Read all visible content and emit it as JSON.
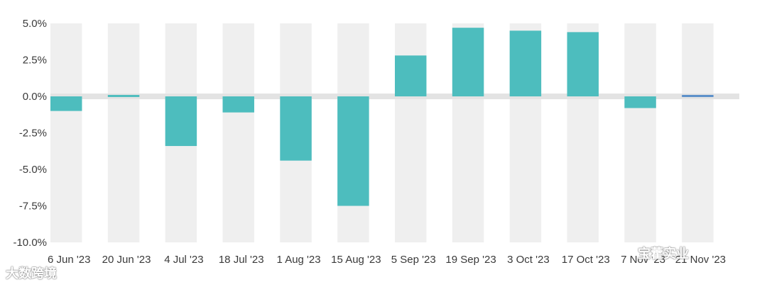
{
  "chart_data": {
    "type": "bar",
    "title": "",
    "xlabel": "",
    "ylabel": "",
    "ylim": [
      -10.0,
      5.0
    ],
    "y_ticks": [
      "5.0%",
      "2.5%",
      "0.0%",
      "-2.5%",
      "-5.0%",
      "-7.5%",
      "-10.0%"
    ],
    "y_tick_values": [
      5.0,
      2.5,
      0.0,
      -2.5,
      -5.0,
      -7.5,
      -10.0
    ],
    "categories": [
      "6 Jun '23",
      "20 Jun '23",
      "4 Jul '23",
      "18 Jul '23",
      "1 Aug '23",
      "15 Aug '23",
      "5 Sep '23",
      "19 Sep '23",
      "3 Oct '23",
      "17 Oct '23",
      "7 Nov '23",
      "21 Nov '23"
    ],
    "values": [
      -1.0,
      0.1,
      -3.4,
      -1.1,
      -4.4,
      -7.5,
      2.8,
      4.7,
      4.5,
      4.4,
      -0.8,
      0.1
    ],
    "grid": "alternating vertical bands",
    "colors": {
      "bar": "#4dbdbe",
      "last_bar": "#5b8fc9",
      "band": "#efefef",
      "zero_band": "#e3e3e3"
    }
  },
  "watermarks": {
    "left": "大数跨境",
    "right": "宝藿实业"
  }
}
